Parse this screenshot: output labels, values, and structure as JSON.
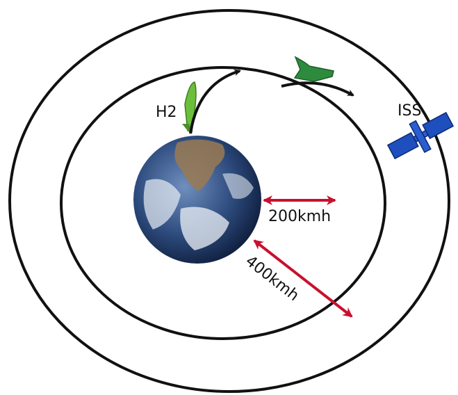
{
  "labels": {
    "rocket": "H2",
    "station": "ISS",
    "inner_distance": "200kmh",
    "outer_distance": "400kmh"
  }
}
